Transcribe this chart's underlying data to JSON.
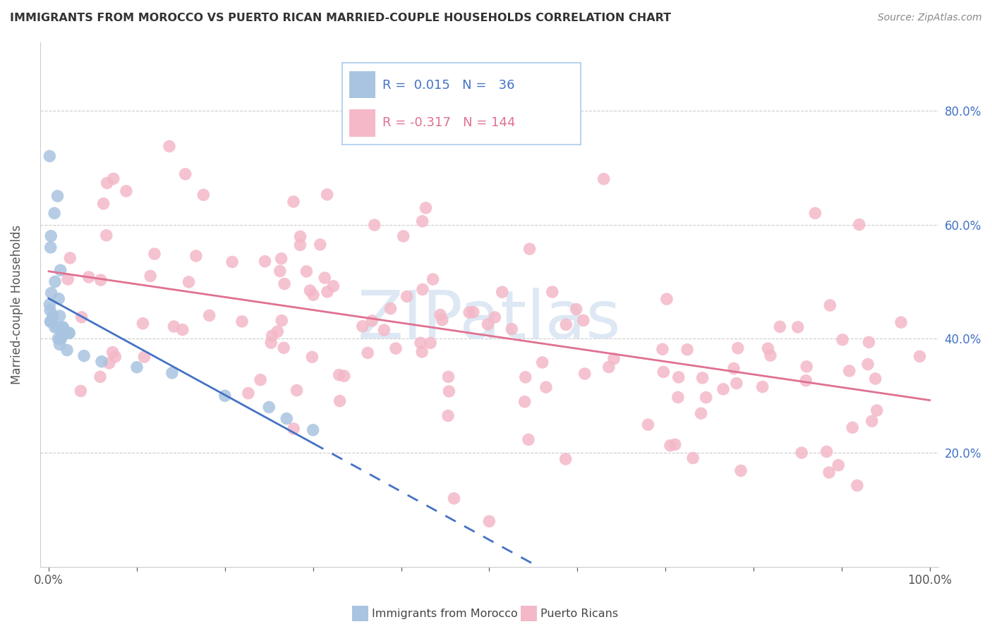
{
  "title": "IMMIGRANTS FROM MOROCCO VS PUERTO RICAN MARRIED-COUPLE HOUSEHOLDS CORRELATION CHART",
  "source": "Source: ZipAtlas.com",
  "ylabel": "Married-couple Households",
  "y_ticks": [
    0.2,
    0.4,
    0.6,
    0.8
  ],
  "y_tick_labels": [
    "20.0%",
    "40.0%",
    "60.0%",
    "80.0%"
  ],
  "scatter_color_morocco": "#a8c4e0",
  "scatter_color_pr": "#f4b8c8",
  "line_color_morocco": "#4472c4",
  "line_color_pr": "#e07090",
  "background": "#ffffff",
  "grid_color": "#cccccc",
  "watermark_color": "#dde8f4",
  "legend_r1_label": "R =  0.015   N =   36",
  "legend_r2_label": "R = -0.317   N = 144",
  "bottom_legend1": "Immigrants from Morocco",
  "bottom_legend2": "Puerto Ricans",
  "title_color": "#333333",
  "source_color": "#888888",
  "tick_label_color": "#4472c4",
  "ylabel_color": "#555555"
}
